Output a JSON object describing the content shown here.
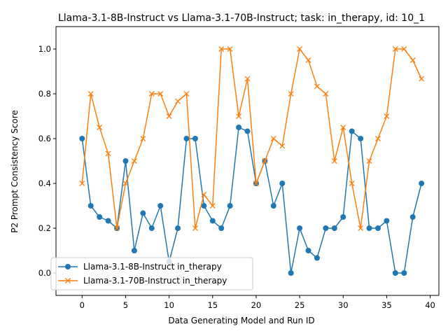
{
  "chart_data": {
    "type": "line",
    "title": "Llama-3.1-8B-Instruct vs Llama-3.1-70B-Instruct; task: in_therapy, id: 10_1",
    "xlabel": "Data Generating Model and Run ID",
    "ylabel": "P2 Prompt Consistency Score",
    "xlim": [
      -3,
      41
    ],
    "ylim": [
      -0.1,
      1.1
    ],
    "xticks": [
      0,
      5,
      10,
      15,
      20,
      25,
      30,
      35,
      40
    ],
    "yticks": [
      0.0,
      0.2,
      0.4,
      0.6,
      0.8,
      1.0
    ],
    "xtick_labels": [
      "0",
      "5",
      "10",
      "15",
      "20",
      "25",
      "30",
      "35",
      "40"
    ],
    "ytick_labels": [
      "0.0",
      "0.2",
      "0.4",
      "0.6",
      "0.8",
      "1.0"
    ],
    "grid": false,
    "legend_position": "lower-left",
    "x": [
      0,
      1,
      2,
      3,
      4,
      5,
      6,
      7,
      8,
      9,
      10,
      11,
      12,
      13,
      14,
      15,
      16,
      17,
      18,
      19,
      20,
      21,
      22,
      23,
      24,
      25,
      26,
      27,
      28,
      29,
      30,
      31,
      32,
      33,
      34,
      35,
      36,
      37,
      38,
      39
    ],
    "series": [
      {
        "name": "Llama-3.1-8B-Instruct in_therapy",
        "color": "#1f77b4",
        "marker": "circle",
        "values": [
          0.6,
          0.3,
          0.25,
          0.233,
          0.2,
          0.5,
          0.1,
          0.267,
          0.2,
          0.3,
          0.05,
          0.2,
          0.6,
          0.6,
          0.3,
          0.233,
          0.2,
          0.3,
          0.65,
          0.633,
          0.4,
          0.5,
          0.3,
          0.4,
          0.0,
          0.2,
          0.1,
          0.067,
          0.2,
          0.2,
          0.25,
          0.633,
          0.6,
          0.2,
          0.2,
          0.233,
          0.0,
          0.0,
          0.25,
          0.4
        ]
      },
      {
        "name": "Llama-3.1-70B-Instruct in_therapy",
        "color": "#ff7f0e",
        "marker": "x",
        "values": [
          0.4,
          0.8,
          0.65,
          0.533,
          0.2,
          0.4,
          0.5,
          0.6,
          0.8,
          0.8,
          0.7,
          0.767,
          0.8,
          0.2,
          0.35,
          0.3,
          1.0,
          1.0,
          0.7,
          0.867,
          0.4,
          0.5,
          0.6,
          0.567,
          0.8,
          1.0,
          0.95,
          0.833,
          0.8,
          0.5,
          0.65,
          0.4,
          0.2,
          0.5,
          0.6,
          0.7,
          1.0,
          1.0,
          0.95,
          0.867
        ]
      }
    ]
  }
}
